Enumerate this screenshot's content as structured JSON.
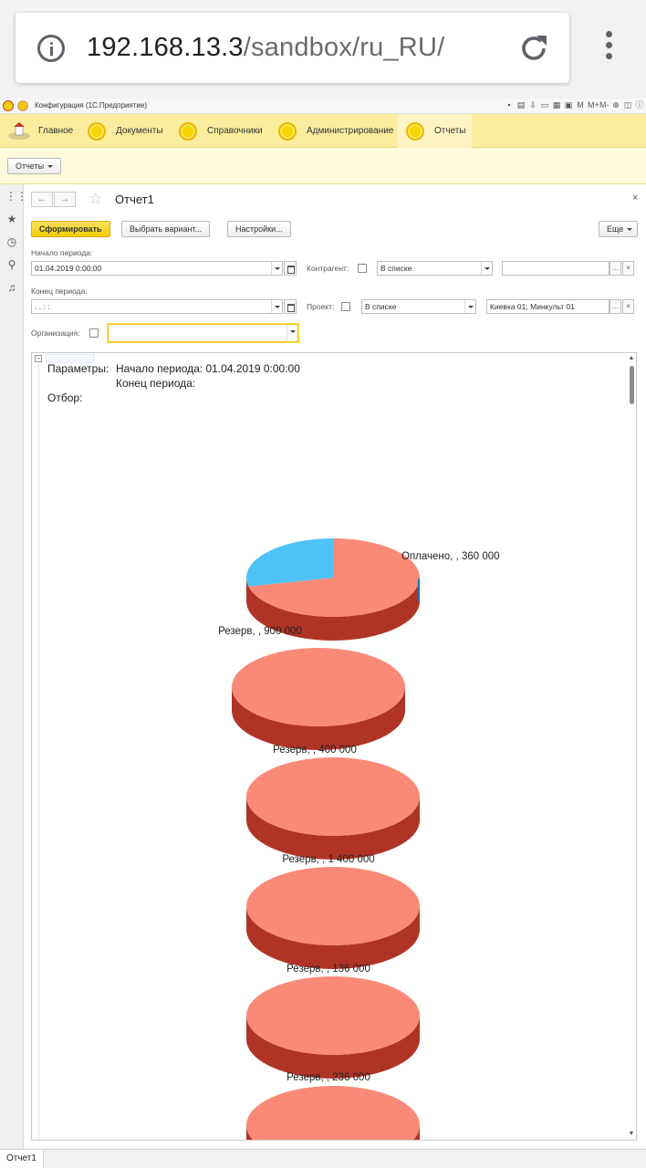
{
  "browser": {
    "url_host": "192.168.13.3",
    "url_path": "/sandbox/ru_RU/",
    "icons": [
      "info-icon",
      "reload-icon",
      "kebab-menu-icon"
    ]
  },
  "app": {
    "window_title": "Конфигурация  (1С:Предприятие)",
    "toolbar_icons": [
      "M",
      "M+",
      "M-"
    ]
  },
  "sections": [
    {
      "label": "Главное",
      "icon": "home-icon"
    },
    {
      "label": "Документы",
      "icon": "section-icon"
    },
    {
      "label": "Справочники",
      "icon": "section-icon"
    },
    {
      "label": "Администрирование",
      "icon": "section-icon"
    },
    {
      "label": "Отчеты",
      "icon": "section-icon",
      "active": true
    }
  ],
  "command_panel": {
    "menu_label": "Отчеты"
  },
  "form": {
    "title": "Отчет1",
    "close": "×",
    "buttons": {
      "generate": "Сформировать",
      "choose_variant": "Выбрать вариант...",
      "settings": "Настройки...",
      "more": "Еще"
    },
    "fields": {
      "period_start_label": "Начало периода:",
      "period_start_value": "01.04.2019  0:00:00",
      "period_end_label": "Конец периода:",
      "period_end_value": " .  .       :  :",
      "counterparty_label": "Контрагент:",
      "counterparty_mode": "В списке",
      "counterparty_value": "",
      "project_label": "Проект:",
      "project_mode": "В списке",
      "project_value": "Киевка 01; Минкульт 01",
      "organization_label": "Организация:",
      "organization_value": ""
    }
  },
  "report": {
    "params_label": "Параметры:",
    "params_start": "Начало периода: 01.04.2019 0:00:00",
    "params_end": "Конец периода:",
    "filter_label": "Отбор:"
  },
  "chart_data": {
    "type": "pie",
    "title": "",
    "charts": [
      {
        "slices": [
          {
            "label": "Резерв, , 900 000",
            "value": 900000,
            "color": "#fa8a78"
          },
          {
            "label": "Оплачено, , 360 000",
            "value": 360000,
            "color": "#4fc3f7"
          }
        ]
      },
      {
        "slices": [
          {
            "label": "Резерв, , 400 000",
            "value": 400000,
            "color": "#fa8a78"
          }
        ]
      },
      {
        "slices": [
          {
            "label": "Резерв, , 1 400 000",
            "value": 1400000,
            "color": "#fa8a78"
          }
        ]
      },
      {
        "slices": [
          {
            "label": "Резерв, , 136 000",
            "value": 136000,
            "color": "#fa8a78"
          }
        ]
      },
      {
        "slices": [
          {
            "label": "Резерв, , 236 000",
            "value": 236000,
            "color": "#fa8a78"
          }
        ]
      },
      {
        "slices": [
          {
            "label": "",
            "value": 1,
            "color": "#fa8a78"
          }
        ]
      }
    ]
  },
  "bottom_tabs": [
    {
      "label": "Отчет1"
    }
  ]
}
